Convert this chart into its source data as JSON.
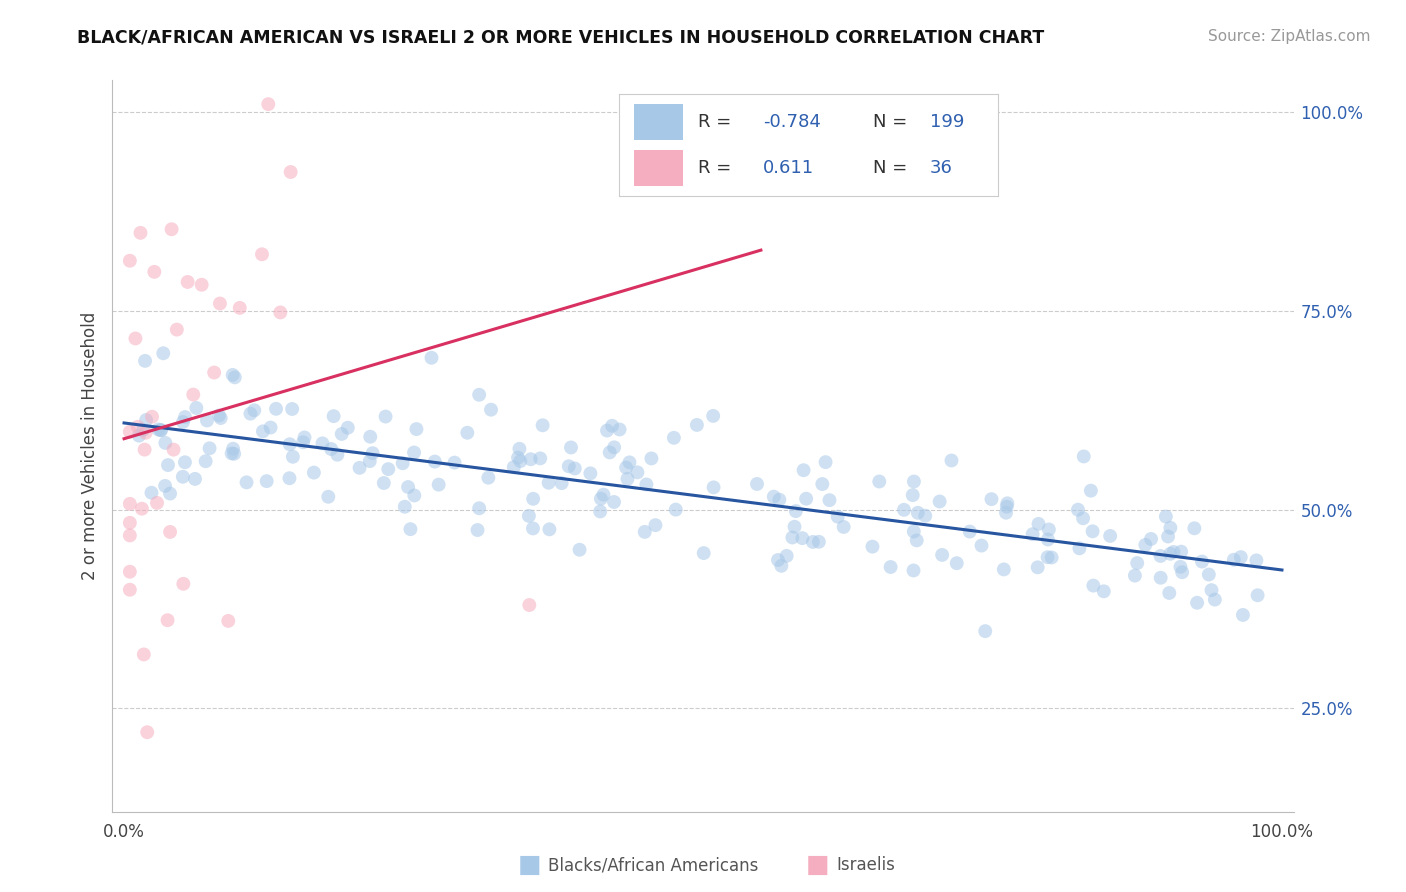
{
  "title": "BLACK/AFRICAN AMERICAN VS ISRAELI 2 OR MORE VEHICLES IN HOUSEHOLD CORRELATION CHART",
  "source_text": "Source: ZipAtlas.com",
  "ylabel": "2 or more Vehicles in Household",
  "xlim": [
    -0.01,
    1.01
  ],
  "ylim": [
    0.12,
    1.04
  ],
  "blue_R": -0.784,
  "blue_N": 199,
  "pink_R": 0.611,
  "pink_N": 36,
  "blue_color": "#a8c8e8",
  "pink_color": "#f5aec0",
  "blue_line_color": "#2855a0",
  "pink_line_color": "#d83060",
  "legend_blue_label": "Blacks/African Americans",
  "legend_pink_label": "Israelis",
  "background_color": "#ffffff",
  "grid_color": "#cccccc",
  "right_yticks": [
    0.25,
    0.5,
    0.75,
    1.0
  ],
  "right_yticklabels": [
    "25.0%",
    "50.0%",
    "75.0%",
    "100.0%"
  ],
  "title_fontsize": 12.5,
  "source_fontsize": 11,
  "tick_fontsize": 12,
  "legend_fontsize": 13,
  "marker_size": 100,
  "marker_alpha": 0.55
}
